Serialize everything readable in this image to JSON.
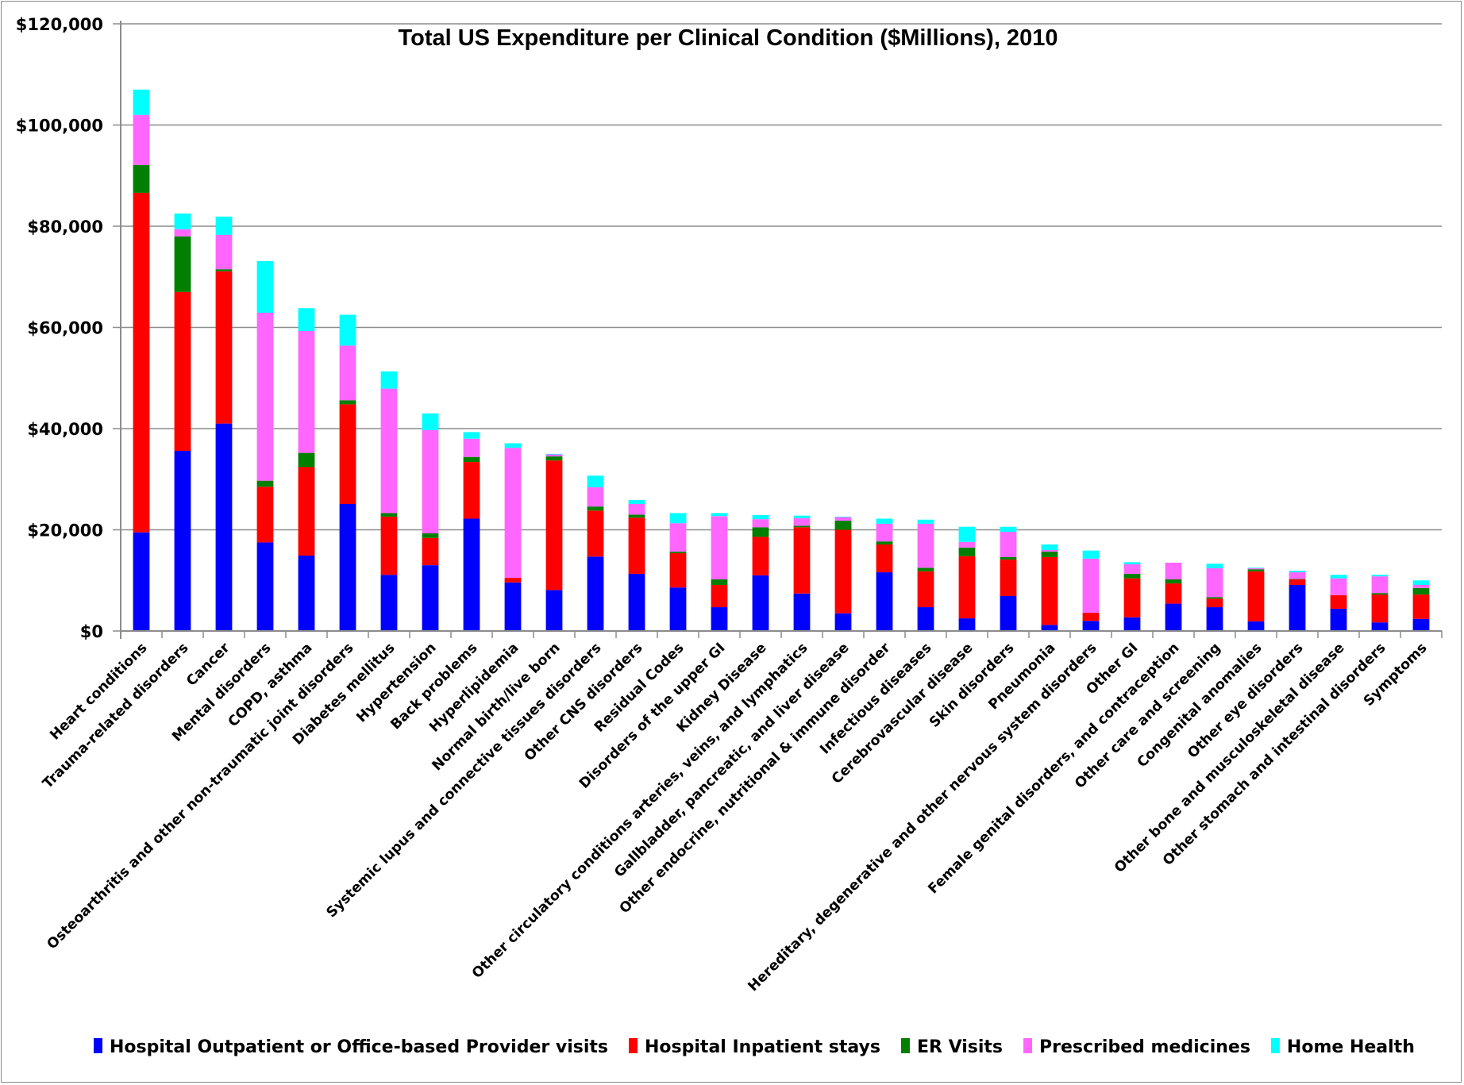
{
  "chart_data": {
    "type": "bar",
    "stacked": true,
    "title": "Total US Expenditure per Clinical Condition ($Millions), 2010",
    "xlabel": "",
    "ylabel": "",
    "ylim": [
      0,
      120000
    ],
    "yticks": [
      0,
      20000,
      40000,
      60000,
      80000,
      100000,
      120000
    ],
    "ytick_labels": [
      "$0",
      "$20,000",
      "$40,000",
      "$60,000",
      "$80,000",
      "$100,000",
      "$120,000"
    ],
    "grid": true,
    "legend_position": "bottom",
    "categories": [
      "Heart conditions",
      "Trauma-related disorders",
      "Cancer",
      "Mental disorders",
      "COPD, asthma",
      "Osteoarthritis and other non-traumatic joint disorders",
      "Diabetes mellitus",
      "Hypertension",
      "Back problems",
      "Hyperlipidemia",
      "Normal birth/live born",
      "Systemic lupus and connective tissues disorders",
      "Other CNS disorders",
      "Residual Codes",
      "Disorders of the upper GI",
      "Kidney Disease",
      "Other circulatory conditions arteries, veins, and lymphatics",
      "Gallbladder, pancreatic, and liver disease",
      "Other endocrine, nutritional & immune disorder",
      "Infectious diseases",
      "Cerebrovascular disease",
      "Skin disorders",
      "Pneumonia",
      "Hereditary, degenerative and other nervous system disorders",
      "Other GI",
      "Female genital disorders, and contraception",
      "Other care and screening",
      "Congenital anomalies",
      "Other eye disorders",
      "Other bone and musculoskeletal disease",
      "Other stomach and intestinal disorders",
      "Symptoms"
    ],
    "series": [
      {
        "name": "Hospital Outpatient or Office-based Provider visits",
        "color": "#0000ff",
        "values": [
          19500,
          35600,
          41000,
          17500,
          14900,
          25100,
          11100,
          13000,
          22200,
          9600,
          8100,
          14700,
          11300,
          8600,
          4700,
          11000,
          7400,
          3500,
          11600,
          4700,
          2500,
          6900,
          1200,
          2000,
          2700,
          5400,
          4700,
          1900,
          9100,
          4400,
          1700,
          2400
        ]
      },
      {
        "name": "Hospital Inpatient stays",
        "color": "#ff0000",
        "values": [
          67100,
          31400,
          30100,
          11000,
          17500,
          19700,
          11500,
          5400,
          11200,
          900,
          25600,
          9100,
          11100,
          6800,
          4400,
          7600,
          13100,
          16500,
          5500,
          7100,
          12300,
          7200,
          13400,
          1600,
          7700,
          4000,
          1700,
          9900,
          1100,
          2700,
          5500,
          4800
        ]
      },
      {
        "name": "ER Visits",
        "color": "#007f00",
        "values": [
          5500,
          11000,
          400,
          1200,
          2800,
          800,
          700,
          900,
          1000,
          0,
          800,
          800,
          600,
          300,
          1100,
          1900,
          300,
          1800,
          600,
          700,
          1700,
          500,
          1100,
          0,
          900,
          800,
          300,
          400,
          100,
          0,
          300,
          1300
        ]
      },
      {
        "name": "Prescribed medicines",
        "color": "#ff66ff",
        "values": [
          9900,
          1400,
          6800,
          33200,
          24100,
          10800,
          24600,
          20400,
          3600,
          25700,
          400,
          3800,
          2100,
          5600,
          12500,
          1600,
          1500,
          700,
          3500,
          8700,
          1100,
          5000,
          300,
          10700,
          1900,
          3300,
          5700,
          200,
          1300,
          3300,
          3300,
          600
        ]
      },
      {
        "name": "Home Health",
        "color": "#00ffff",
        "values": [
          5000,
          3100,
          3600,
          10200,
          4500,
          6100,
          3400,
          3300,
          1300,
          900,
          100,
          2300,
          800,
          2000,
          600,
          800,
          500,
          100,
          1000,
          800,
          3000,
          1000,
          1100,
          1600,
          400,
          0,
          900,
          100,
          300,
          700,
          300,
          900
        ]
      }
    ]
  }
}
